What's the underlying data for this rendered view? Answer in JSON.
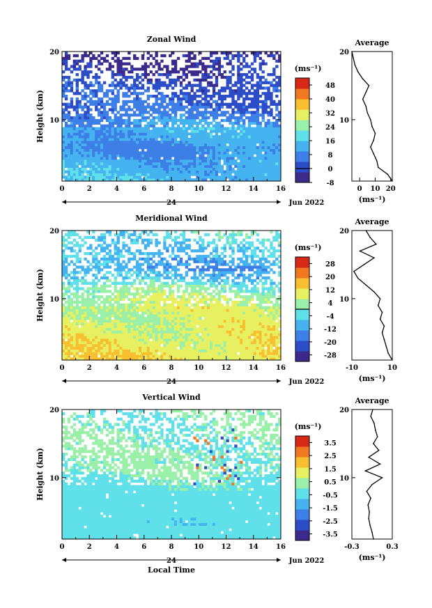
{
  "chart_data": [
    {
      "type": "heatmap",
      "title": "Zonal Wind",
      "ylabel": "Height (km)",
      "xlabel": "",
      "xlim": [
        0,
        16
      ],
      "ylim": [
        1,
        20
      ],
      "xticks": [
        "0",
        "2",
        "4",
        "6",
        "8",
        "10",
        "12",
        "14",
        "16"
      ],
      "yticks": [
        "10",
        "20"
      ],
      "date_marker": "24",
      "date_label": "Jun 2022",
      "colorbar": {
        "unit": "(ms⁻¹)",
        "ticks": [
          "48",
          "40",
          "32",
          "24",
          "16",
          "8",
          "0",
          "-8"
        ],
        "range": [
          -8,
          52
        ],
        "zero_line": 0
      },
      "profile": {
        "title": "Average",
        "xticks": [
          "0",
          "10",
          "20"
        ],
        "xlim": [
          -5,
          21
        ],
        "xlabel": "(ms⁻¹)",
        "height": [
          1,
          2,
          3,
          4,
          5,
          6,
          7,
          8,
          9,
          10,
          11,
          12,
          13,
          14,
          15,
          16,
          17,
          18,
          19,
          20
        ],
        "values": [
          21,
          18,
          12,
          11,
          9,
          7,
          9,
          10,
          8,
          7,
          5,
          4,
          2,
          4,
          6,
          2,
          -1,
          -3,
          -4,
          -5
        ]
      },
      "field": {
        "baseline": [
          14,
          13,
          12,
          10,
          9,
          10,
          12,
          13,
          10,
          7,
          5,
          4,
          3,
          2,
          1,
          -1,
          -2,
          -3,
          -4,
          -5
        ],
        "diurnal": 5
      }
    },
    {
      "type": "heatmap",
      "title": "Meridional Wind",
      "ylabel": "Height (km)",
      "xlabel": "",
      "xlim": [
        0,
        16
      ],
      "ylim": [
        1,
        20
      ],
      "xticks": [
        "0",
        "2",
        "4",
        "6",
        "8",
        "10",
        "12",
        "14",
        "16"
      ],
      "yticks": [
        "10",
        "20"
      ],
      "date_marker": "24",
      "date_label": "Jun 2022",
      "colorbar": {
        "unit": "(ms⁻¹)",
        "ticks": [
          "28",
          "20",
          "12",
          "4",
          "-4",
          "-12",
          "-20",
          "-28"
        ],
        "range": [
          -32,
          32
        ],
        "zero_line": 0
      },
      "profile": {
        "title": "Average",
        "xticks": [
          "-10",
          "10"
        ],
        "xlim": [
          -10,
          10
        ],
        "xlabel": "(ms⁻¹)",
        "height": [
          1,
          2,
          3,
          4,
          5,
          6,
          7,
          8,
          9,
          10,
          11,
          12,
          13,
          14,
          15,
          16,
          17,
          18,
          19,
          20
        ],
        "values": [
          10,
          8,
          7,
          6,
          5,
          6,
          4,
          5,
          3,
          4,
          1,
          -3,
          -7,
          -9,
          -4,
          1,
          -6,
          2,
          -1,
          -3
        ]
      },
      "field": {
        "baseline": [
          12,
          11,
          10,
          10,
          9,
          8,
          7,
          8,
          6,
          5,
          2,
          -3,
          -8,
          -12,
          -10,
          -6,
          -8,
          -5,
          -3,
          -2
        ],
        "diurnal": 6
      }
    },
    {
      "type": "heatmap",
      "title": "Vertical Wind",
      "ylabel": "Height (km)",
      "xlabel": "Local Time",
      "xlim": [
        0,
        16
      ],
      "ylim": [
        1,
        20
      ],
      "xticks": [
        "0",
        "2",
        "4",
        "6",
        "8",
        "10",
        "12",
        "14",
        "16"
      ],
      "yticks": [
        "10",
        "20"
      ],
      "date_marker": "24",
      "date_label": "Jun 2022",
      "colorbar": {
        "unit": "(ms⁻¹)",
        "ticks": [
          "3.5",
          "2.5",
          "1.5",
          "0.5",
          "-0.5",
          "-1.5",
          "-2.5",
          "-3.5"
        ],
        "range": [
          -4,
          4
        ],
        "zero_line": null
      },
      "profile": {
        "title": "Average",
        "xticks": [
          "-0.3",
          "0.3"
        ],
        "xlim": [
          -0.3,
          0.3
        ],
        "xlabel": "(ms⁻¹)",
        "height": [
          1,
          2,
          3,
          4,
          5,
          6,
          7,
          8,
          9,
          10,
          11,
          12,
          13,
          14,
          15,
          16,
          17,
          18,
          19,
          20
        ],
        "values": [
          0.02,
          0.0,
          -0.03,
          -0.05,
          -0.04,
          -0.06,
          -0.02,
          -0.08,
          0.0,
          0.15,
          -0.1,
          0.12,
          -0.05,
          0.1,
          0.02,
          0.08,
          0.05,
          0.03,
          -0.02,
          0.01
        ]
      },
      "field": {
        "baseline": [
          -0.3,
          -0.5,
          -0.6,
          -0.5,
          -0.4,
          -0.4,
          -0.3,
          -0.2,
          -0.1,
          0.0,
          0.1,
          0.0,
          0.1,
          0.0,
          0.0,
          0.1,
          0.0,
          0.0,
          0.0,
          0.0
        ],
        "diurnal": 0.3
      }
    }
  ]
}
